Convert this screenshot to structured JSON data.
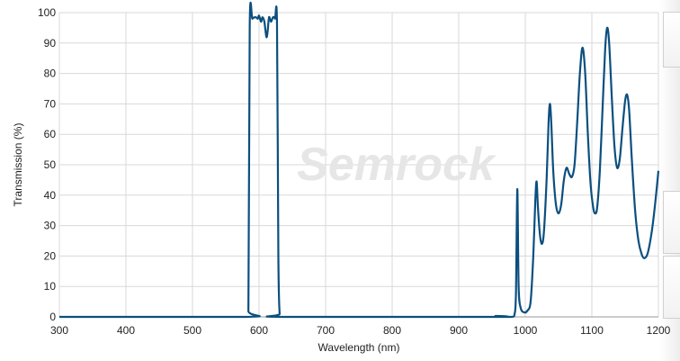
{
  "chart_data": {
    "type": "line",
    "title": "",
    "xlabel": "Wavelength (nm)",
    "ylabel": "Transmission (%)",
    "xlim": [
      300,
      1200
    ],
    "ylim": [
      0,
      100
    ],
    "xticks": [
      300,
      400,
      500,
      600,
      700,
      800,
      900,
      1000,
      1100,
      1200
    ],
    "yticks": [
      0,
      10,
      20,
      30,
      40,
      50,
      60,
      70,
      80,
      90,
      100
    ],
    "grid": true,
    "legend": "none",
    "line_color": "#0b4f7f",
    "watermark": "Semrock",
    "series": [
      {
        "x": [
          300,
          580,
          584,
          586,
          590,
          595,
          598,
          600,
          603,
          605,
          608,
          611,
          613,
          615,
          618,
          621,
          624,
          627,
          629,
          631,
          635,
          950,
          955,
          960,
          980,
          984,
          986,
          988,
          990,
          993,
          998,
          1003,
          1008,
          1012,
          1015,
          1017,
          1019,
          1022,
          1025,
          1028,
          1032,
          1035,
          1037,
          1039,
          1042,
          1046,
          1050,
          1054,
          1058,
          1062,
          1066,
          1070,
          1074,
          1078,
          1082,
          1086,
          1090,
          1094,
          1098,
          1102,
          1105,
          1108,
          1112,
          1116,
          1120,
          1123,
          1126,
          1130,
          1134,
          1138,
          1142,
          1146,
          1150,
          1153,
          1156,
          1160,
          1165,
          1170,
          1175,
          1179,
          1184,
          1190,
          1195,
          1200
        ],
        "y": [
          0,
          0,
          2,
          96,
          98,
          98.5,
          98,
          99,
          97,
          98.5,
          97,
          92,
          94,
          98.5,
          97,
          98.5,
          98,
          96,
          20,
          1,
          0,
          0,
          0.3,
          0,
          0,
          1,
          8,
          42,
          10,
          3,
          1.5,
          2,
          5,
          20,
          38,
          44.5,
          36,
          27,
          24,
          28,
          45,
          64,
          70,
          64,
          48,
          37,
          34,
          37,
          45,
          49,
          47,
          46,
          50,
          64,
          80,
          88.5,
          80,
          60,
          44,
          36,
          34,
          36,
          48,
          68,
          88,
          95,
          90,
          72,
          56,
          49,
          52,
          62,
          71,
          73,
          68,
          52,
          35,
          25,
          20.5,
          19.3,
          21,
          28,
          37,
          48
        ]
      }
    ]
  }
}
